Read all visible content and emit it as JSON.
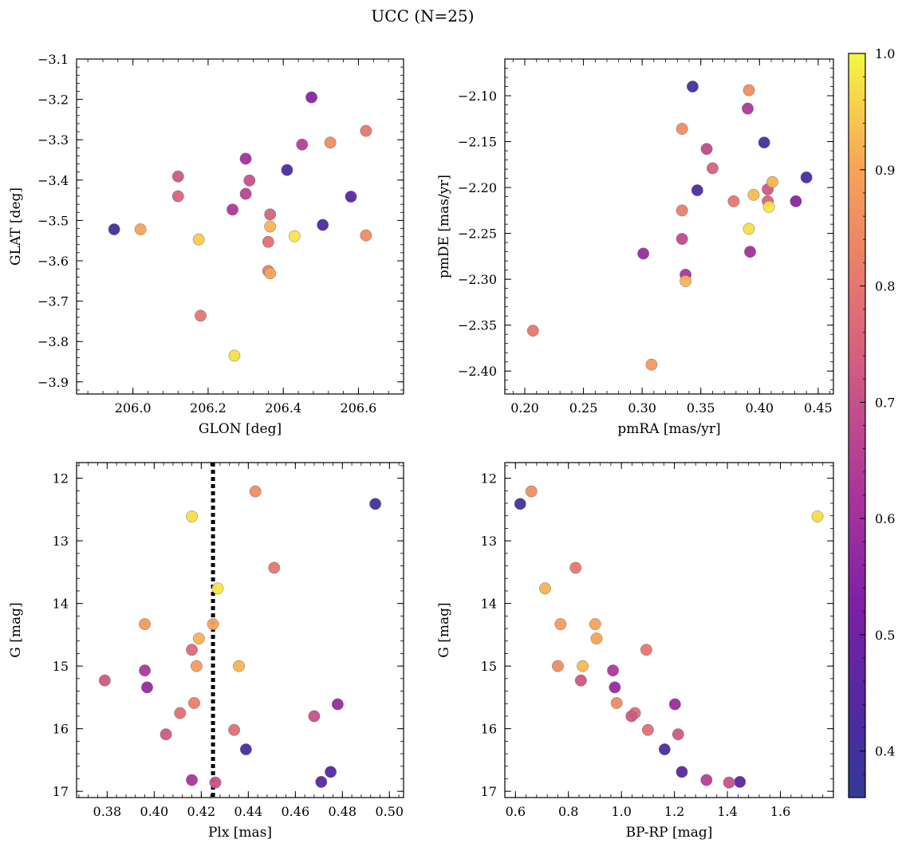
{
  "figure": {
    "title": "UCC (N=25)"
  },
  "colormap": {
    "name": "plasma",
    "min": 0.36,
    "max": 1.0,
    "ticks": [
      "0.4",
      "0.5",
      "0.6",
      "0.7",
      "0.8",
      "0.9",
      "1.0"
    ],
    "tick_values": [
      0.4,
      0.5,
      0.6,
      0.7,
      0.8,
      0.9,
      1.0
    ]
  },
  "chart_data": [
    {
      "type": "scatter",
      "id": "glon-glat",
      "xlabel": "GLON [deg]",
      "ylabel": "GLAT [deg]",
      "xlim": [
        205.85,
        206.72
      ],
      "ylim": [
        -3.93,
        -3.1
      ],
      "x_ticks": [
        206.0,
        206.2,
        206.4,
        206.6
      ],
      "x_tick_labels": [
        "206.0",
        "206.2",
        "206.4",
        "206.6"
      ],
      "y_ticks": [
        -3.9,
        -3.8,
        -3.7,
        -3.6,
        -3.5,
        -3.4,
        -3.3,
        -3.2,
        -3.1
      ],
      "y_tick_labels": [
        "−3.9",
        "−3.8",
        "−3.7",
        "−3.6",
        "−3.5",
        "−3.4",
        "−3.3",
        "−3.2",
        "−3.1"
      ],
      "points": [
        {
          "x": 205.95,
          "y": -3.522,
          "c": 0.4
        },
        {
          "x": 206.02,
          "y": -3.522,
          "c": 0.9
        },
        {
          "x": 206.12,
          "y": -3.391,
          "c": 0.72
        },
        {
          "x": 206.12,
          "y": -3.44,
          "c": 0.75
        },
        {
          "x": 206.175,
          "y": -3.547,
          "c": 0.95
        },
        {
          "x": 206.18,
          "y": -3.736,
          "c": 0.8
        },
        {
          "x": 206.265,
          "y": -3.473,
          "c": 0.63
        },
        {
          "x": 206.27,
          "y": -3.835,
          "c": 0.97
        },
        {
          "x": 206.3,
          "y": -3.347,
          "c": 0.6
        },
        {
          "x": 206.3,
          "y": -3.434,
          "c": 0.66
        },
        {
          "x": 206.31,
          "y": -3.401,
          "c": 0.7
        },
        {
          "x": 206.36,
          "y": -3.553,
          "c": 0.78
        },
        {
          "x": 206.36,
          "y": -3.625,
          "c": 0.82
        },
        {
          "x": 206.365,
          "y": -3.485,
          "c": 0.75
        },
        {
          "x": 206.365,
          "y": -3.631,
          "c": 0.9
        },
        {
          "x": 206.365,
          "y": -3.515,
          "c": 0.92
        },
        {
          "x": 206.41,
          "y": -3.375,
          "c": 0.42
        },
        {
          "x": 206.43,
          "y": -3.539,
          "c": 0.98
        },
        {
          "x": 206.45,
          "y": -3.312,
          "c": 0.65
        },
        {
          "x": 206.475,
          "y": -3.195,
          "c": 0.55
        },
        {
          "x": 206.505,
          "y": -3.511,
          "c": 0.42
        },
        {
          "x": 206.525,
          "y": -3.307,
          "c": 0.85
        },
        {
          "x": 206.58,
          "y": -3.441,
          "c": 0.45
        },
        {
          "x": 206.62,
          "y": -3.537,
          "c": 0.85
        },
        {
          "x": 206.62,
          "y": -3.278,
          "c": 0.8
        }
      ]
    },
    {
      "type": "scatter",
      "id": "pmra-pmde",
      "xlabel": "pmRA [mas/yr]",
      "ylabel": "pmDE [mas/yr]",
      "xlim": [
        0.183,
        0.463
      ],
      "ylim": [
        -2.425,
        -2.06
      ],
      "x_ticks": [
        0.2,
        0.25,
        0.3,
        0.35,
        0.4,
        0.45
      ],
      "x_tick_labels": [
        "0.20",
        "0.25",
        "0.30",
        "0.35",
        "0.40",
        "0.45"
      ],
      "y_ticks": [
        -2.4,
        -2.35,
        -2.3,
        -2.25,
        -2.2,
        -2.15,
        -2.1
      ],
      "y_tick_labels": [
        "−2.40",
        "−2.35",
        "−2.30",
        "−2.25",
        "−2.20",
        "−2.15",
        "−2.10"
      ],
      "points": [
        {
          "x": 0.207,
          "y": -2.356,
          "c": 0.8
        },
        {
          "x": 0.301,
          "y": -2.272,
          "c": 0.58
        },
        {
          "x": 0.308,
          "y": -2.393,
          "c": 0.88
        },
        {
          "x": 0.334,
          "y": -2.136,
          "c": 0.85
        },
        {
          "x": 0.334,
          "y": -2.225,
          "c": 0.82
        },
        {
          "x": 0.334,
          "y": -2.256,
          "c": 0.68
        },
        {
          "x": 0.337,
          "y": -2.295,
          "c": 0.62
        },
        {
          "x": 0.337,
          "y": -2.302,
          "c": 0.92
        },
        {
          "x": 0.343,
          "y": -2.09,
          "c": 0.4
        },
        {
          "x": 0.347,
          "y": -2.203,
          "c": 0.42
        },
        {
          "x": 0.355,
          "y": -2.158,
          "c": 0.68
        },
        {
          "x": 0.36,
          "y": -2.179,
          "c": 0.75
        },
        {
          "x": 0.378,
          "y": -2.215,
          "c": 0.8
        },
        {
          "x": 0.391,
          "y": -2.094,
          "c": 0.85
        },
        {
          "x": 0.39,
          "y": -2.114,
          "c": 0.63
        },
        {
          "x": 0.391,
          "y": -2.245,
          "c": 0.97
        },
        {
          "x": 0.392,
          "y": -2.27,
          "c": 0.6
        },
        {
          "x": 0.395,
          "y": -2.208,
          "c": 0.93
        },
        {
          "x": 0.404,
          "y": -2.151,
          "c": 0.4
        },
        {
          "x": 0.407,
          "y": -2.202,
          "c": 0.72
        },
        {
          "x": 0.407,
          "y": -2.215,
          "c": 0.75
        },
        {
          "x": 0.408,
          "y": -2.221,
          "c": 0.98
        },
        {
          "x": 0.411,
          "y": -2.194,
          "c": 0.92
        },
        {
          "x": 0.431,
          "y": -2.215,
          "c": 0.55
        },
        {
          "x": 0.44,
          "y": -2.189,
          "c": 0.42
        }
      ]
    },
    {
      "type": "scatter",
      "id": "plx-g",
      "xlabel": "Plx [mas]",
      "ylabel": "G [mag]",
      "xlim": [
        0.367,
        0.506
      ],
      "ylim": [
        17.1,
        11.75
      ],
      "x_ticks": [
        0.38,
        0.4,
        0.42,
        0.44,
        0.46,
        0.48,
        0.5
      ],
      "x_tick_labels": [
        "0.38",
        "0.40",
        "0.42",
        "0.44",
        "0.46",
        "0.48",
        "0.50"
      ],
      "y_ticks": [
        12,
        13,
        14,
        15,
        16,
        17
      ],
      "y_tick_labels": [
        "12",
        "13",
        "14",
        "15",
        "16",
        "17"
      ],
      "vline": 0.425,
      "points": [
        {
          "x": 0.443,
          "y": 12.21,
          "c": 0.85
        },
        {
          "x": 0.494,
          "y": 12.41,
          "c": 0.4
        },
        {
          "x": 0.416,
          "y": 12.61,
          "c": 0.97
        },
        {
          "x": 0.451,
          "y": 13.43,
          "c": 0.8
        },
        {
          "x": 0.427,
          "y": 13.76,
          "c": 0.98
        },
        {
          "x": 0.396,
          "y": 14.33,
          "c": 0.88
        },
        {
          "x": 0.425,
          "y": 14.33,
          "c": 0.9
        },
        {
          "x": 0.419,
          "y": 14.56,
          "c": 0.92
        },
        {
          "x": 0.416,
          "y": 14.74,
          "c": 0.77
        },
        {
          "x": 0.418,
          "y": 15.0,
          "c": 0.88
        },
        {
          "x": 0.436,
          "y": 15.0,
          "c": 0.92
        },
        {
          "x": 0.396,
          "y": 15.07,
          "c": 0.63
        },
        {
          "x": 0.379,
          "y": 15.23,
          "c": 0.72
        },
        {
          "x": 0.397,
          "y": 15.34,
          "c": 0.58
        },
        {
          "x": 0.417,
          "y": 15.59,
          "c": 0.82
        },
        {
          "x": 0.478,
          "y": 15.61,
          "c": 0.58
        },
        {
          "x": 0.411,
          "y": 15.75,
          "c": 0.78
        },
        {
          "x": 0.468,
          "y": 15.8,
          "c": 0.7
        },
        {
          "x": 0.434,
          "y": 16.02,
          "c": 0.78
        },
        {
          "x": 0.405,
          "y": 16.09,
          "c": 0.72
        },
        {
          "x": 0.439,
          "y": 16.33,
          "c": 0.42
        },
        {
          "x": 0.475,
          "y": 16.69,
          "c": 0.45
        },
        {
          "x": 0.416,
          "y": 16.82,
          "c": 0.62
        },
        {
          "x": 0.471,
          "y": 16.85,
          "c": 0.45
        },
        {
          "x": 0.426,
          "y": 16.86,
          "c": 0.7
        }
      ]
    },
    {
      "type": "scatter",
      "id": "bprp-g",
      "xlabel": "BP-RP [mag]",
      "ylabel": "G [mag]",
      "xlim": [
        0.56,
        1.8
      ],
      "ylim": [
        17.1,
        11.75
      ],
      "x_ticks": [
        0.6,
        0.8,
        1.0,
        1.2,
        1.4,
        1.6
      ],
      "x_tick_labels": [
        "0.6",
        "0.8",
        "1.0",
        "1.2",
        "1.4",
        "1.6"
      ],
      "y_ticks": [
        12,
        13,
        14,
        15,
        16,
        17
      ],
      "y_tick_labels": [
        "12",
        "13",
        "14",
        "15",
        "16",
        "17"
      ],
      "points": [
        {
          "x": 0.66,
          "y": 12.21,
          "c": 0.85
        },
        {
          "x": 0.618,
          "y": 12.41,
          "c": 0.4
        },
        {
          "x": 1.74,
          "y": 12.61,
          "c": 0.97
        },
        {
          "x": 0.827,
          "y": 13.43,
          "c": 0.8
        },
        {
          "x": 0.712,
          "y": 13.76,
          "c": 0.92
        },
        {
          "x": 0.77,
          "y": 14.33,
          "c": 0.88
        },
        {
          "x": 0.901,
          "y": 14.33,
          "c": 0.9
        },
        {
          "x": 0.906,
          "y": 14.56,
          "c": 0.9
        },
        {
          "x": 1.094,
          "y": 14.74,
          "c": 0.8
        },
        {
          "x": 0.76,
          "y": 15.0,
          "c": 0.85
        },
        {
          "x": 0.854,
          "y": 15.0,
          "c": 0.93
        },
        {
          "x": 0.968,
          "y": 15.07,
          "c": 0.63
        },
        {
          "x": 0.847,
          "y": 15.23,
          "c": 0.72
        },
        {
          "x": 0.975,
          "y": 15.34,
          "c": 0.58
        },
        {
          "x": 0.982,
          "y": 15.59,
          "c": 0.85
        },
        {
          "x": 1.202,
          "y": 15.61,
          "c": 0.58
        },
        {
          "x": 1.051,
          "y": 15.75,
          "c": 0.78
        },
        {
          "x": 1.038,
          "y": 15.8,
          "c": 0.72
        },
        {
          "x": 1.1,
          "y": 16.02,
          "c": 0.78
        },
        {
          "x": 1.214,
          "y": 16.09,
          "c": 0.72
        },
        {
          "x": 1.163,
          "y": 16.33,
          "c": 0.42
        },
        {
          "x": 1.228,
          "y": 16.69,
          "c": 0.45
        },
        {
          "x": 1.321,
          "y": 16.82,
          "c": 0.65
        },
        {
          "x": 1.447,
          "y": 16.85,
          "c": 0.45
        },
        {
          "x": 1.406,
          "y": 16.86,
          "c": 0.7
        }
      ]
    }
  ]
}
